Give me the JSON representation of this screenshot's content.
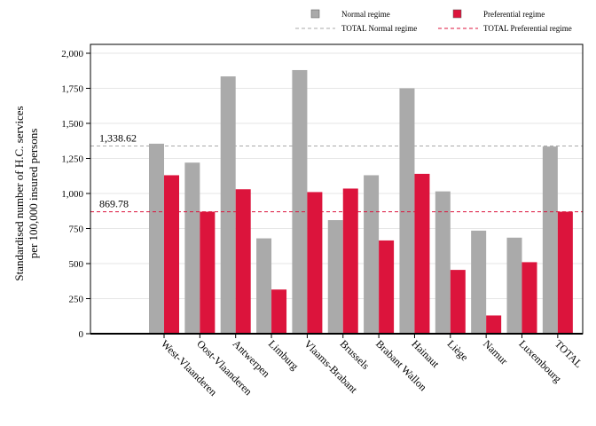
{
  "chart_data": {
    "type": "bar",
    "title": "",
    "ylabel_lines": [
      "Standardised number of H.C. services",
      "per 100,000 insured persons"
    ],
    "xlabel": "",
    "ylim": [
      0,
      2000
    ],
    "yticks": [
      0,
      250,
      500,
      750,
      1000,
      1250,
      1500,
      1750,
      2000
    ],
    "ytick_labels": [
      "0",
      "250",
      "500",
      "750",
      "1,000",
      "1,250",
      "1,500",
      "1,750",
      "2,000"
    ],
    "categories": [
      "West-Vlaanderen",
      "Oost-Vlaanderen",
      "Antwerpen",
      "Limburg",
      "Vlaams-Brabant",
      "Brussels",
      "Brabant Wallon",
      "Hainaut",
      "Liège",
      "Namur",
      "Luxembourg",
      "TOTAL"
    ],
    "series": [
      {
        "name": "Normal regime",
        "color": "#aaaaaa",
        "values": [
          1355,
          1220,
          1835,
          680,
          1880,
          810,
          1130,
          1750,
          1015,
          735,
          685,
          1335
        ]
      },
      {
        "name": "Preferential regime",
        "color": "#dc143c",
        "values": [
          1130,
          870,
          1030,
          315,
          1010,
          1035,
          665,
          1140,
          455,
          130,
          510,
          870
        ]
      }
    ],
    "reference_lines": [
      {
        "name": "TOTAL Normal regime",
        "value": 1338.62,
        "label": "1,338.62",
        "color": "#aaaaaa"
      },
      {
        "name": "TOTAL Preferential regime",
        "value": 869.78,
        "label": "869.78",
        "color": "#dc143c"
      }
    ],
    "legend_position": "top-right",
    "grid": "horizontal"
  }
}
